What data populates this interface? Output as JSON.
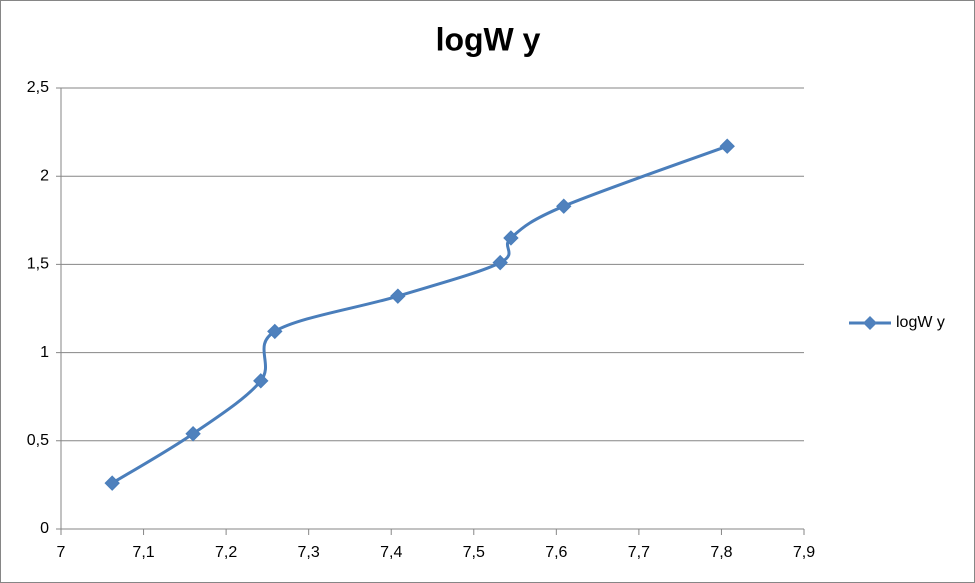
{
  "chart_data": {
    "type": "scatter-smooth",
    "title": "logW y",
    "series": [
      {
        "name": "logW y",
        "color": "#4a7ebb",
        "x": [
          7.062,
          7.16,
          7.242,
          7.259,
          7.408,
          7.532,
          7.545,
          7.609,
          7.807
        ],
        "values": [
          0.26,
          0.54,
          0.84,
          1.12,
          1.32,
          1.51,
          1.65,
          1.83,
          2.17
        ]
      }
    ],
    "xlim": [
      7,
      7.9
    ],
    "xticks": [
      7,
      {
        "value": 7.1,
        "label": "7,1"
      },
      {
        "value": 7.2,
        "label": "7,2"
      },
      {
        "value": 7.3,
        "label": "7,3"
      },
      {
        "value": 7.4,
        "label": "7,4"
      },
      {
        "value": 7.5,
        "label": "7,5"
      },
      {
        "value": 7.6,
        "label": "7,6"
      },
      {
        "value": 7.7,
        "label": "7,7"
      },
      {
        "value": 7.8,
        "label": "7,8"
      },
      {
        "value": 7.9,
        "label": "7,9"
      }
    ],
    "ylim": [
      0,
      2.5
    ],
    "yticks": [
      0,
      {
        "value": 0.5,
        "label": "0,5"
      },
      1,
      {
        "value": 1.5,
        "label": "1,5"
      },
      2,
      {
        "value": 2.5,
        "label": "2,5"
      }
    ],
    "grid": true,
    "legend": "right"
  }
}
